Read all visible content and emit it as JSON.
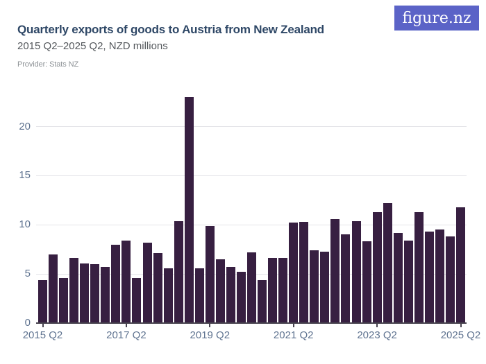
{
  "header": {
    "title": "Quarterly exports of goods to Austria from New Zealand",
    "subtitle": "2015 Q2–2025 Q2, NZD millions",
    "provider": "Provider: Stats NZ",
    "logo_text": "figure.nz"
  },
  "colors": {
    "background": "#ffffff",
    "bar": "#371f41",
    "title": "#2e4766",
    "subtitle": "#54585c",
    "provider": "#8d9296",
    "axis_label": "#5f7390",
    "gridline": "#e4e4e8",
    "axis_line": "#47424e",
    "logo_bg": "#5b63c7",
    "logo_text": "#ffffff"
  },
  "chart_data": {
    "type": "bar",
    "title": "Quarterly exports of goods to Austria from New Zealand",
    "subtitle": "2015 Q2–2025 Q2, NZD millions",
    "units": "NZD millions",
    "xlabel": "",
    "ylabel": "",
    "ylim": [
      0,
      23
    ],
    "yticks": [
      0,
      5,
      10,
      15,
      20
    ],
    "grid": true,
    "legend": false,
    "xtick_labels": [
      "2015 Q2",
      "2017 Q2",
      "2019 Q2",
      "2021 Q2",
      "2023 Q2",
      "2025 Q2"
    ],
    "xtick_indices": [
      0,
      8,
      16,
      24,
      32,
      40
    ],
    "categories": [
      "2015 Q2",
      "2015 Q3",
      "2015 Q4",
      "2016 Q1",
      "2016 Q2",
      "2016 Q3",
      "2016 Q4",
      "2017 Q1",
      "2017 Q2",
      "2017 Q3",
      "2017 Q4",
      "2018 Q1",
      "2018 Q2",
      "2018 Q3",
      "2018 Q4",
      "2019 Q1",
      "2019 Q2",
      "2019 Q3",
      "2019 Q4",
      "2020 Q1",
      "2020 Q2",
      "2020 Q3",
      "2020 Q4",
      "2021 Q1",
      "2021 Q2",
      "2021 Q3",
      "2021 Q4",
      "2022 Q1",
      "2022 Q2",
      "2022 Q3",
      "2022 Q4",
      "2023 Q1",
      "2023 Q2",
      "2023 Q3",
      "2023 Q4",
      "2024 Q1",
      "2024 Q2",
      "2024 Q3",
      "2024 Q4",
      "2025 Q1",
      "2025 Q2"
    ],
    "values": [
      4.4,
      7.0,
      4.6,
      6.6,
      6.1,
      6.0,
      5.7,
      8.0,
      8.4,
      4.6,
      8.2,
      7.1,
      5.6,
      10.4,
      23.0,
      5.6,
      9.9,
      6.5,
      5.7,
      5.2,
      7.2,
      4.4,
      6.6,
      6.6,
      10.2,
      10.3,
      7.4,
      7.3,
      10.6,
      9.0,
      10.4,
      8.3,
      11.3,
      12.2,
      9.2,
      8.4,
      11.3,
      9.3,
      9.5,
      8.8,
      11.8
    ]
  }
}
